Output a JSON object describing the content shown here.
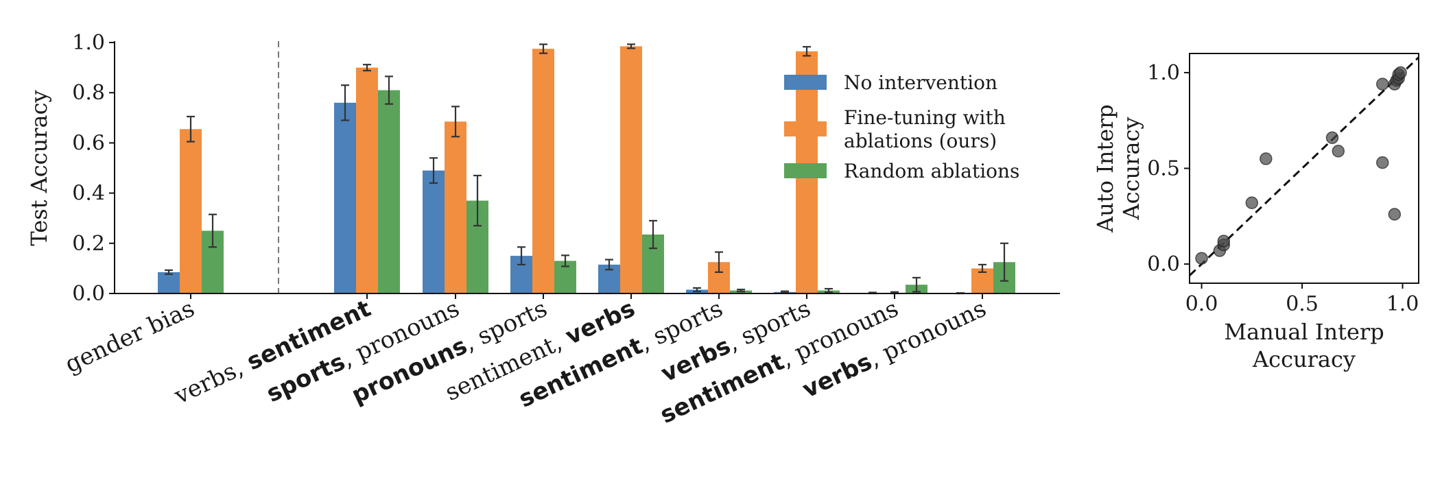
{
  "chart_data": [
    {
      "type": "bar",
      "ylabel": "Test Accuracy",
      "ylim": [
        0,
        1.0
      ],
      "yticks": [
        "0.0",
        "0.2",
        "0.4",
        "0.6",
        "0.8",
        "1.0"
      ],
      "categories": [
        [
          {
            "t": "gender bias",
            "b": false
          }
        ],
        [
          {
            "t": "verbs, ",
            "b": false
          },
          {
            "t": "sentiment",
            "b": true
          }
        ],
        [
          {
            "t": "sports",
            "b": true
          },
          {
            "t": ", pronouns",
            "b": false
          }
        ],
        [
          {
            "t": "pronouns",
            "b": true
          },
          {
            "t": ", sports",
            "b": false
          }
        ],
        [
          {
            "t": "sentiment, ",
            "b": false
          },
          {
            "t": "verbs",
            "b": true
          }
        ],
        [
          {
            "t": "sentiment",
            "b": true
          },
          {
            "t": ", sports",
            "b": false
          }
        ],
        [
          {
            "t": "verbs",
            "b": true
          },
          {
            "t": ", sports",
            "b": false
          }
        ],
        [
          {
            "t": "sentiment",
            "b": true
          },
          {
            "t": ", pronouns",
            "b": false
          }
        ],
        [
          {
            "t": "verbs",
            "b": true
          },
          {
            "t": ", pronouns",
            "b": false
          }
        ]
      ],
      "series": [
        {
          "name": "No intervention",
          "color": "#4c81b9",
          "values": [
            0.085,
            0.76,
            0.49,
            0.15,
            0.115,
            0.015,
            0.006,
            0.002,
            0.001
          ],
          "errors": [
            0.008,
            0.07,
            0.05,
            0.035,
            0.02,
            0.007,
            0.003,
            0.002,
            0.001
          ]
        },
        {
          "name": "Fine-tuning with ablations (ours)",
          "color": "#f28e3f",
          "values": [
            0.655,
            0.9,
            0.685,
            0.975,
            0.985,
            0.125,
            0.965,
            0.003,
            0.1
          ],
          "errors": [
            0.05,
            0.012,
            0.06,
            0.018,
            0.008,
            0.04,
            0.018,
            0.003,
            0.015
          ]
        },
        {
          "name": "Random ablations",
          "color": "#5ba35a",
          "values": [
            0.25,
            0.81,
            0.37,
            0.13,
            0.235,
            0.012,
            0.012,
            0.035,
            0.125
          ],
          "errors": [
            0.065,
            0.055,
            0.1,
            0.022,
            0.055,
            0.004,
            0.007,
            0.028,
            0.075
          ]
        }
      ],
      "legend_position": "top-right",
      "separator_after_first_category": true
    },
    {
      "type": "scatter",
      "xlabel": "Manual Interp Accuracy",
      "ylabel": "Auto Interp Accuracy",
      "xlim": [
        -0.06,
        1.08
      ],
      "ylim": [
        -0.1,
        1.1
      ],
      "xticks": [
        "0.0",
        "0.5",
        "1.0"
      ],
      "yticks": [
        "0.0",
        "0.5",
        "1.0"
      ],
      "points": [
        {
          "x": 0.0,
          "y": 0.03
        },
        {
          "x": 0.09,
          "y": 0.07
        },
        {
          "x": 0.11,
          "y": 0.1
        },
        {
          "x": 0.11,
          "y": 0.12
        },
        {
          "x": 0.25,
          "y": 0.32
        },
        {
          "x": 0.32,
          "y": 0.55
        },
        {
          "x": 0.65,
          "y": 0.66
        },
        {
          "x": 0.68,
          "y": 0.59
        },
        {
          "x": 0.9,
          "y": 0.53
        },
        {
          "x": 0.9,
          "y": 0.94
        },
        {
          "x": 0.96,
          "y": 0.26
        },
        {
          "x": 0.96,
          "y": 0.94
        },
        {
          "x": 0.97,
          "y": 0.96
        },
        {
          "x": 0.98,
          "y": 0.97
        },
        {
          "x": 0.98,
          "y": 0.99
        },
        {
          "x": 0.99,
          "y": 1.0
        }
      ],
      "diagonal": true
    }
  ]
}
